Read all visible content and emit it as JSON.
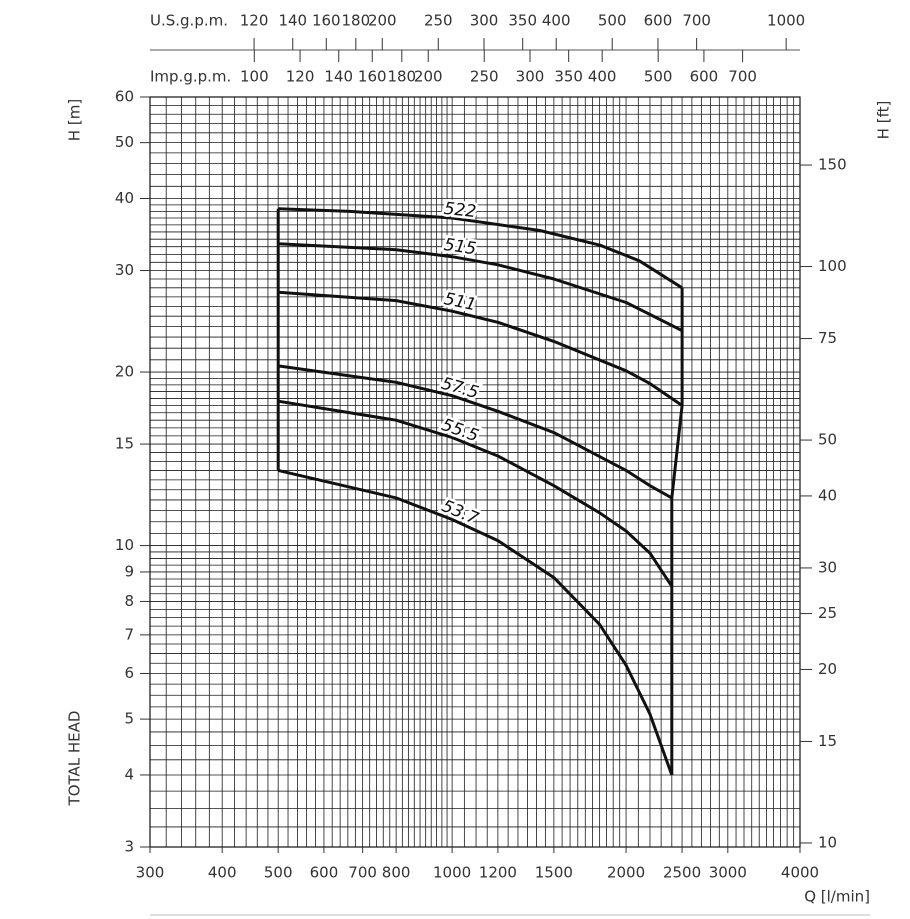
{
  "chart_data": {
    "type": "line",
    "log_scale": true,
    "grid": true,
    "x_label": "Q [l/min]",
    "y_label": "H [m]",
    "y_side_label": "TOTAL HEAD",
    "y2_label": "H [ft]",
    "xlim": [
      300,
      4000
    ],
    "xticks": [
      300,
      400,
      500,
      600,
      700,
      800,
      1000,
      1200,
      1500,
      2000,
      2500,
      3000,
      4000
    ],
    "ylim": [
      3,
      60
    ],
    "yticks": [
      3,
      4,
      5,
      6,
      7,
      8,
      9,
      10,
      15,
      20,
      30,
      40,
      50,
      60
    ],
    "y2lim": [
      9.84,
      196.85
    ],
    "y2ticks": [
      10,
      15,
      20,
      25,
      30,
      40,
      50,
      75,
      100,
      150
    ],
    "top_axes": [
      {
        "label": "U.S.g.p.m.",
        "lim": [
          79.26,
          1056.8
        ],
        "ticks": [
          120,
          140,
          160,
          180,
          200,
          250,
          300,
          350,
          400,
          500,
          600,
          700,
          1000
        ]
      },
      {
        "label": "Imp.g.p.m.",
        "lim": [
          65.99,
          879.9
        ],
        "ticks": [
          100,
          120,
          140,
          160,
          180,
          200,
          250,
          300,
          350,
          400,
          500,
          600,
          700
        ]
      }
    ],
    "xgrid": [
      300,
      320,
      340,
      360,
      380,
      400,
      420,
      440,
      460,
      480,
      500,
      520,
      540,
      560,
      580,
      600,
      620,
      640,
      660,
      680,
      700,
      720,
      740,
      760,
      780,
      800,
      820,
      840,
      860,
      880,
      900,
      920,
      940,
      960,
      980,
      1000,
      1050,
      1100,
      1150,
      1200,
      1250,
      1300,
      1350,
      1400,
      1450,
      1500,
      1550,
      1600,
      1650,
      1700,
      1750,
      1800,
      1850,
      1900,
      1950,
      2000,
      2100,
      2200,
      2300,
      2400,
      2500,
      2600,
      2700,
      2800,
      2900,
      3000,
      3100,
      3200,
      3300,
      3400,
      3500,
      3600,
      3700,
      3800,
      3900,
      4000
    ],
    "ygrid": [
      3,
      3.25,
      3.5,
      3.75,
      4,
      4.25,
      4.5,
      4.75,
      5,
      5.25,
      5.5,
      5.75,
      6,
      6.25,
      6.5,
      6.75,
      7,
      7.25,
      7.5,
      7.75,
      8,
      8.25,
      8.5,
      8.75,
      9,
      9.25,
      9.5,
      9.75,
      10,
      10.5,
      11,
      11.5,
      12,
      12.5,
      13,
      13.5,
      14,
      14.5,
      15,
      15.5,
      16,
      16.5,
      17,
      17.5,
      18,
      18.5,
      19,
      19.5,
      20,
      21,
      22,
      23,
      24,
      25,
      26,
      27,
      28,
      29,
      30,
      31,
      32,
      33,
      34,
      35,
      36,
      37,
      38,
      39,
      40,
      42,
      44,
      46,
      48,
      50,
      52,
      54,
      56,
      58,
      60
    ],
    "series": [
      {
        "name": "522",
        "color": "#111111",
        "x": [
          500,
          666,
          1000,
          1419,
          1803,
          2107,
          2500
        ],
        "values": [
          38.4,
          38.0,
          37.0,
          35.2,
          33.2,
          31.2,
          28.0
        ]
      },
      {
        "name": "515",
        "color": "#111111",
        "x": [
          500,
          800,
          1000,
          1200,
          1500,
          2000,
          2500
        ],
        "values": [
          33.4,
          32.6,
          31.7,
          30.7,
          29.0,
          26.4,
          23.6
        ]
      },
      {
        "name": "511",
        "color": "#111111",
        "x": [
          500,
          800,
          1000,
          1200,
          1500,
          2000,
          2200,
          2500
        ],
        "values": [
          27.5,
          26.6,
          25.5,
          24.4,
          22.6,
          20.1,
          19.1,
          17.5
        ]
      },
      {
        "name": "57.5",
        "color": "#111111",
        "x": [
          500,
          800,
          1000,
          1200,
          1500,
          2000,
          2200,
          2400
        ],
        "values": [
          20.5,
          19.2,
          18.2,
          17.1,
          15.7,
          13.5,
          12.7,
          12.1
        ]
      },
      {
        "name": "55.5",
        "color": "#111111",
        "x": [
          500,
          800,
          1000,
          1200,
          1500,
          1800,
          2000,
          2200,
          2400
        ],
        "values": [
          17.8,
          16.5,
          15.4,
          14.3,
          12.7,
          11.4,
          10.6,
          9.7,
          8.5
        ]
      },
      {
        "name": "53.7",
        "color": "#111111",
        "x": [
          500,
          800,
          1000,
          1200,
          1500,
          1800,
          2000,
          2200,
          2400
        ],
        "values": [
          13.5,
          12.1,
          11.1,
          10.2,
          8.8,
          7.3,
          6.2,
          5.1,
          4.0
        ]
      }
    ]
  }
}
